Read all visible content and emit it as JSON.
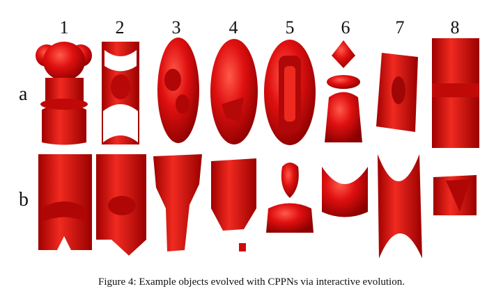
{
  "figure": {
    "column_numbers": [
      "1",
      "2",
      "3",
      "4",
      "5",
      "6",
      "7",
      "8"
    ],
    "row_labels": [
      "a",
      "b"
    ],
    "caption": "Figure 4: Example objects evolved with CPPNs via interactive evolution.",
    "object_color": "#e01010",
    "object_shadow": "#8a0000",
    "object_highlight": "#ff5a4a"
  }
}
